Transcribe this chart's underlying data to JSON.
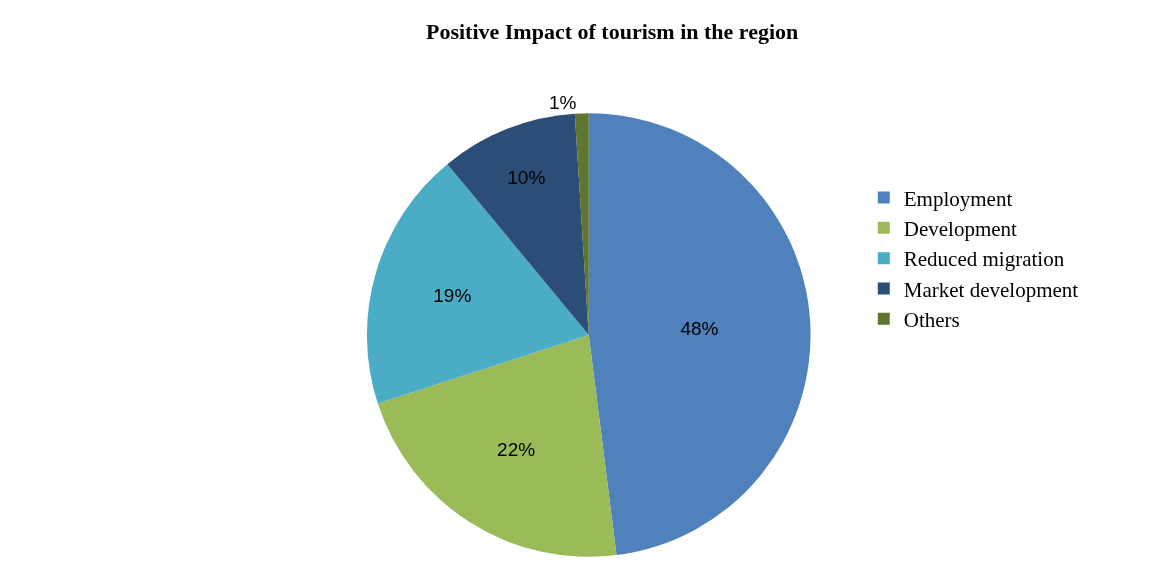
{
  "chart_data": {
    "type": "pie",
    "title": "Positive Impact of tourism in the region",
    "categories": [
      "Employment",
      "Development",
      "Reduced migration",
      "Market development",
      "Others"
    ],
    "values": [
      48,
      22,
      19,
      10,
      1
    ],
    "colors": [
      "#4f81bd",
      "#9bbb59",
      "#4bacc6",
      "#2c4d75",
      "#5f7530"
    ],
    "value_labels": [
      "48%",
      "22%",
      "19%",
      "10%",
      "1%"
    ],
    "legend": "right"
  }
}
